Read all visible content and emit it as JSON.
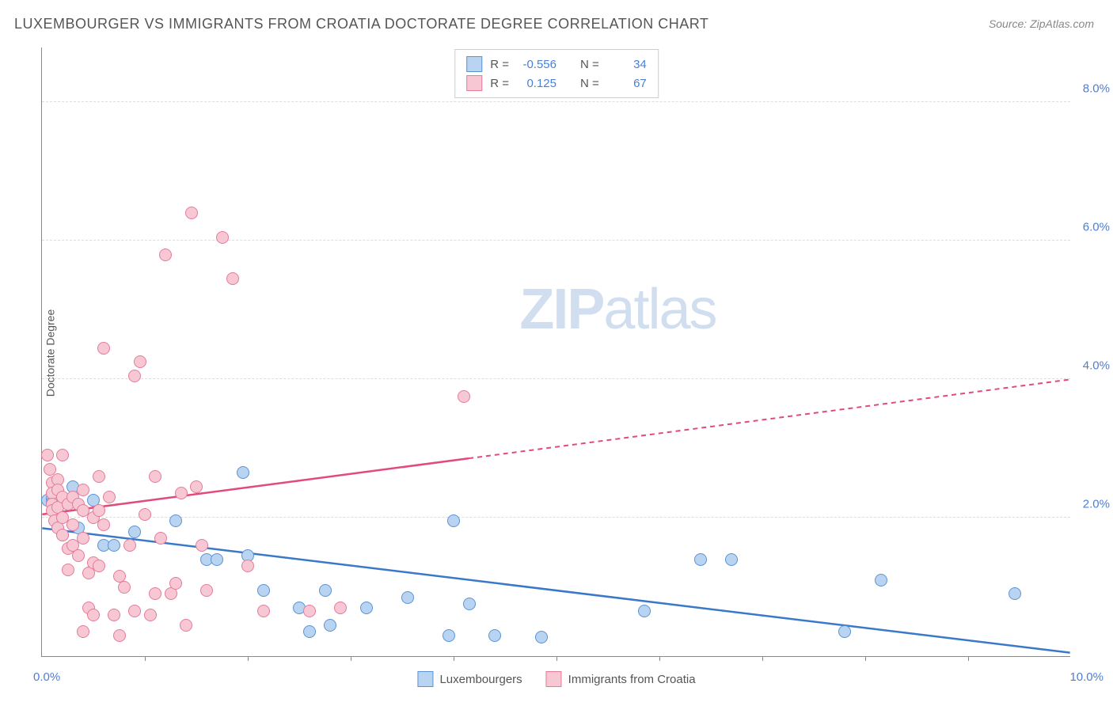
{
  "title": "LUXEMBOURGER VS IMMIGRANTS FROM CROATIA DOCTORATE DEGREE CORRELATION CHART",
  "source_label": "Source: ",
  "source_name": "ZipAtlas.com",
  "y_axis_label": "Doctorate Degree",
  "watermark_bold": "ZIP",
  "watermark_light": "atlas",
  "chart": {
    "type": "scatter",
    "xlim": [
      0.0,
      10.0
    ],
    "ylim": [
      0.0,
      8.8
    ],
    "x_min_label": "0.0%",
    "x_max_label": "10.0%",
    "y_ticks": [
      2.0,
      4.0,
      6.0,
      8.0
    ],
    "y_tick_labels": [
      "2.0%",
      "4.0%",
      "6.0%",
      "8.0%"
    ],
    "x_tick_positions": [
      1.0,
      2.0,
      3.0,
      4.0,
      5.0,
      6.0,
      7.0,
      8.0,
      9.0
    ],
    "background_color": "#ffffff",
    "grid_color": "#dddddd",
    "axis_color": "#888888",
    "series": [
      {
        "name": "Luxembourgers",
        "marker_fill": "#b9d4f1",
        "marker_stroke": "#5a93d6",
        "line_color": "#3b78c9",
        "R": "-0.556",
        "N": "34",
        "trend": {
          "x1": 0.0,
          "y1": 1.85,
          "x2": 10.0,
          "y2": 0.05
        },
        "trend_dash_after_x": 10.0,
        "points": [
          [
            0.05,
            2.25
          ],
          [
            0.1,
            2.28
          ],
          [
            0.1,
            2.22
          ],
          [
            0.15,
            2.3
          ],
          [
            0.2,
            1.75
          ],
          [
            0.3,
            2.45
          ],
          [
            0.35,
            1.85
          ],
          [
            0.5,
            2.25
          ],
          [
            0.6,
            1.6
          ],
          [
            0.7,
            1.6
          ],
          [
            0.9,
            1.8
          ],
          [
            1.3,
            1.95
          ],
          [
            1.6,
            1.4
          ],
          [
            1.95,
            2.65
          ],
          [
            1.7,
            1.4
          ],
          [
            2.0,
            1.45
          ],
          [
            2.15,
            0.95
          ],
          [
            2.5,
            0.7
          ],
          [
            2.6,
            0.35
          ],
          [
            2.75,
            0.95
          ],
          [
            2.8,
            0.45
          ],
          [
            3.15,
            0.7
          ],
          [
            3.55,
            0.85
          ],
          [
            3.95,
            0.3
          ],
          [
            4.0,
            1.95
          ],
          [
            4.15,
            0.75
          ],
          [
            4.4,
            0.3
          ],
          [
            4.85,
            0.28
          ],
          [
            5.85,
            0.65
          ],
          [
            6.4,
            1.4
          ],
          [
            6.7,
            1.4
          ],
          [
            7.8,
            0.35
          ],
          [
            8.15,
            1.1
          ],
          [
            9.45,
            0.9
          ]
        ]
      },
      {
        "name": "Immigrants from Croatia",
        "marker_fill": "#f7c8d4",
        "marker_stroke": "#e57a9a",
        "line_color": "#e24a7a",
        "R": "0.125",
        "N": "67",
        "trend": {
          "x1": 0.0,
          "y1": 2.05,
          "x2": 10.0,
          "y2": 4.0
        },
        "trend_dash_after_x": 4.15,
        "points": [
          [
            0.05,
            2.9
          ],
          [
            0.08,
            2.7
          ],
          [
            0.1,
            2.5
          ],
          [
            0.1,
            2.35
          ],
          [
            0.1,
            2.2
          ],
          [
            0.1,
            2.1
          ],
          [
            0.12,
            1.95
          ],
          [
            0.15,
            2.55
          ],
          [
            0.15,
            2.4
          ],
          [
            0.15,
            2.15
          ],
          [
            0.15,
            1.85
          ],
          [
            0.2,
            2.9
          ],
          [
            0.2,
            2.3
          ],
          [
            0.2,
            2.0
          ],
          [
            0.2,
            1.75
          ],
          [
            0.25,
            2.2
          ],
          [
            0.25,
            1.55
          ],
          [
            0.25,
            1.25
          ],
          [
            0.3,
            2.3
          ],
          [
            0.3,
            1.9
          ],
          [
            0.3,
            1.6
          ],
          [
            0.35,
            2.2
          ],
          [
            0.35,
            1.45
          ],
          [
            0.4,
            2.4
          ],
          [
            0.4,
            2.1
          ],
          [
            0.4,
            1.7
          ],
          [
            0.4,
            0.35
          ],
          [
            0.45,
            1.2
          ],
          [
            0.45,
            0.7
          ],
          [
            0.5,
            2.0
          ],
          [
            0.5,
            1.35
          ],
          [
            0.5,
            0.6
          ],
          [
            0.55,
            2.6
          ],
          [
            0.55,
            2.1
          ],
          [
            0.55,
            1.3
          ],
          [
            0.6,
            4.45
          ],
          [
            0.6,
            1.9
          ],
          [
            0.65,
            2.3
          ],
          [
            0.7,
            0.6
          ],
          [
            0.75,
            1.15
          ],
          [
            0.75,
            0.3
          ],
          [
            0.8,
            1.0
          ],
          [
            0.85,
            1.6
          ],
          [
            0.9,
            4.05
          ],
          [
            0.9,
            0.65
          ],
          [
            0.95,
            4.25
          ],
          [
            1.0,
            2.05
          ],
          [
            1.05,
            0.6
          ],
          [
            1.1,
            2.6
          ],
          [
            1.1,
            0.9
          ],
          [
            1.15,
            1.7
          ],
          [
            1.2,
            5.8
          ],
          [
            1.25,
            0.9
          ],
          [
            1.3,
            1.05
          ],
          [
            1.35,
            2.35
          ],
          [
            1.4,
            0.45
          ],
          [
            1.45,
            6.4
          ],
          [
            1.5,
            2.45
          ],
          [
            1.55,
            1.6
          ],
          [
            1.6,
            0.95
          ],
          [
            1.75,
            6.05
          ],
          [
            1.85,
            5.45
          ],
          [
            2.0,
            1.3
          ],
          [
            2.15,
            0.65
          ],
          [
            2.6,
            0.65
          ],
          [
            2.9,
            0.7
          ],
          [
            4.1,
            3.75
          ]
        ]
      }
    ]
  },
  "legend_top": {
    "R_label": "R =",
    "N_label": "N ="
  },
  "legend_bottom_labels": [
    "Luxembourgers",
    "Immigrants from Croatia"
  ]
}
